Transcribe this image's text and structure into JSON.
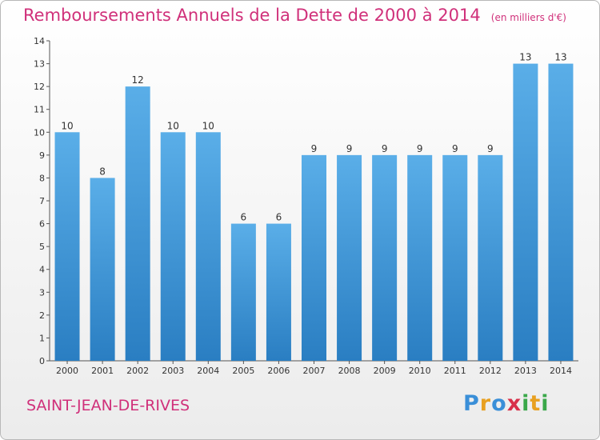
{
  "chart_data": {
    "type": "bar",
    "title": "Remboursements Annuels de la Dette de 2000 à 2014",
    "subtitle": "(en milliers d'€)",
    "xlabel": "",
    "ylabel": "",
    "categories": [
      "2000",
      "2001",
      "2002",
      "2003",
      "2004",
      "2005",
      "2006",
      "2007",
      "2008",
      "2009",
      "2010",
      "2011",
      "2012",
      "2013",
      "2014"
    ],
    "values": [
      10,
      8,
      12,
      10,
      10,
      6,
      6,
      9,
      9,
      9,
      9,
      9,
      9,
      13,
      13
    ],
    "ylim": [
      0,
      14
    ],
    "yticks": [
      "0",
      "1",
      "2",
      "3",
      "4",
      "5",
      "6",
      "7",
      "8",
      "9",
      "10",
      "11",
      "12",
      "13",
      "14"
    ],
    "grid": false,
    "legend": "none",
    "colors": {
      "bar_top": "#5aaee8",
      "bar_bottom": "#2a7ec2",
      "title": "#d0307a",
      "axis": "#555555"
    }
  },
  "footer": {
    "commune": "SAINT-JEAN-DE-RIVES",
    "brand_letters": [
      {
        "ch": "P",
        "color": "#3a8fd8"
      },
      {
        "ch": "r",
        "color": "#e8a020"
      },
      {
        "ch": "o",
        "color": "#3a8fd8"
      },
      {
        "ch": "x",
        "color": "#d8304a"
      },
      {
        "ch": "i",
        "color": "#3aa84a"
      },
      {
        "ch": "t",
        "color": "#e8a020"
      },
      {
        "ch": "i",
        "color": "#3aa84a"
      }
    ]
  }
}
